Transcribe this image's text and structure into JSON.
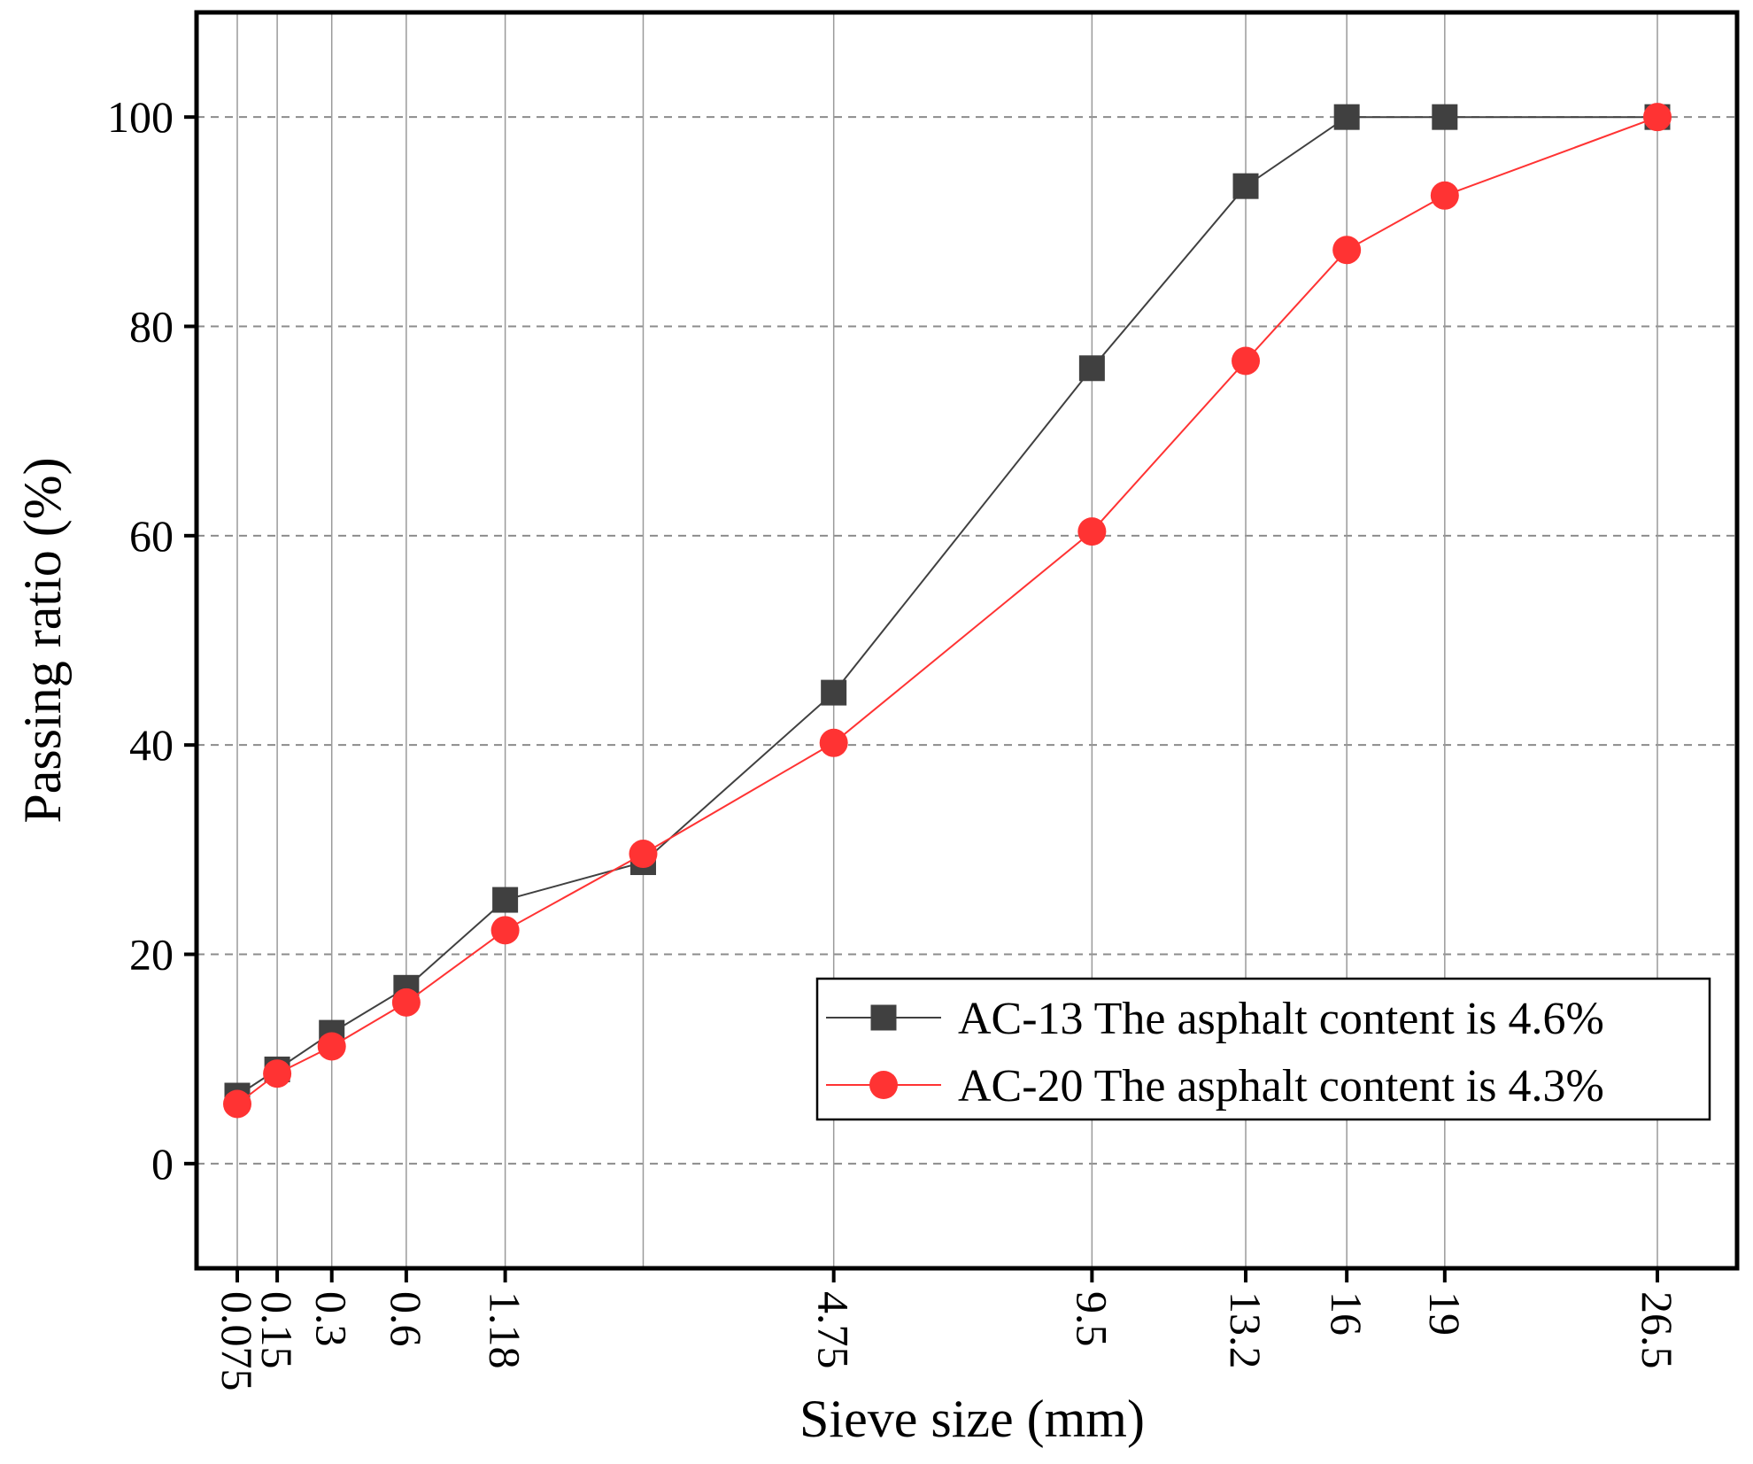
{
  "chart_data": {
    "type": "line",
    "title": "",
    "xlabel": "Sieve size (mm)",
    "ylabel": "Passing ratio (%)",
    "x_scale": "power-0.45",
    "ylim": [
      -10,
      110
    ],
    "yticks": [
      0,
      20,
      40,
      60,
      80,
      100
    ],
    "xtick_labels": [
      "0.075",
      "0.15",
      "0.3",
      "0.6",
      "1.18",
      "4.75",
      "9.5",
      "13.2",
      "16",
      "19",
      "26.5"
    ],
    "x_gridlines": [
      0.075,
      0.15,
      0.3,
      0.6,
      1.18,
      2.36,
      4.75,
      9.5,
      13.2,
      16,
      19,
      26.5
    ],
    "grid": true,
    "legend_position": "bottom-right",
    "series": [
      {
        "name": "AC-13 The asphalt content is 4.6%",
        "color": "#404040",
        "marker": "square",
        "x": [
          0.075,
          0.15,
          0.3,
          0.6,
          1.18,
          2.36,
          4.75,
          9.5,
          13.2,
          16,
          19,
          26.5
        ],
        "values": [
          6.5,
          9,
          12.5,
          16.8,
          25.2,
          28.8,
          45,
          76,
          93.4,
          100,
          100,
          100
        ]
      },
      {
        "name": "AC-20 The asphalt content is 4.3%",
        "color": "#ff3333",
        "marker": "circle",
        "x": [
          0.075,
          0.15,
          0.3,
          0.6,
          1.18,
          2.36,
          4.75,
          9.5,
          13.2,
          16,
          19,
          26.5
        ],
        "values": [
          5.7,
          8.6,
          11.2,
          15.4,
          22.3,
          29.6,
          40.2,
          60.4,
          76.7,
          87.3,
          92.5,
          100
        ]
      }
    ]
  }
}
